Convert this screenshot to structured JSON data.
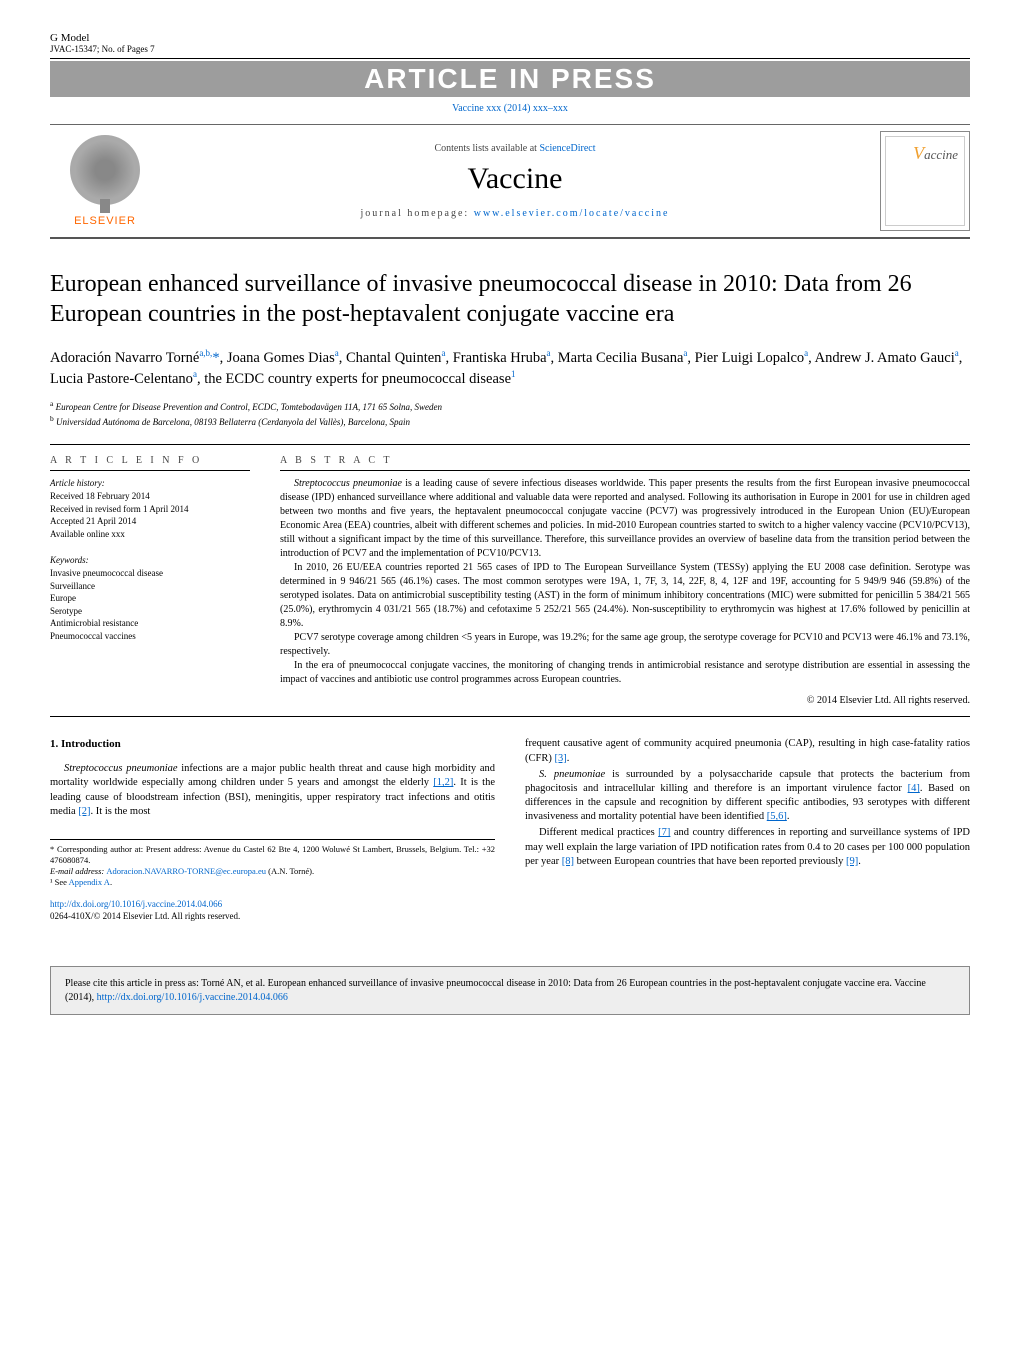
{
  "header": {
    "gmodel": "G Model",
    "gmodel_ref": "JVAC-15347;   No. of Pages 7",
    "aip": "ARTICLE IN PRESS",
    "journal_ref_text": "Vaccine xxx (2014) xxx–xxx",
    "contents_text": "Contents lists available at ",
    "contents_link": "ScienceDirect",
    "journal_title": "Vaccine",
    "homepage_label": "journal homepage: ",
    "homepage_url": "www.elsevier.com/locate/vaccine",
    "elsevier": "ELSEVIER",
    "cover_text": "accine"
  },
  "title": "European enhanced surveillance of invasive pneumococcal disease in 2010: Data from 26 European countries in the post-heptavalent conjugate vaccine era",
  "authors_html": "Adoración Navarro Torné<sup>a,b,</sup><span class='corr'>*</span>, Joana Gomes Dias<sup>a</sup>, Chantal Quinten<sup>a</sup>, Frantiska Hruba<sup>a</sup>, Marta Cecilia Busana<sup>a</sup>, Pier Luigi Lopalco<sup>a</sup>, Andrew J. Amato Gauci<sup>a</sup>, Lucia Pastore-Celentano<sup>a</sup>, the ECDC country experts for pneumococcal disease<sup>1</sup>",
  "affiliations": {
    "a": "European Centre for Disease Prevention and Control, ECDC, Tomtebodavägen 11A, 171 65 Solna, Sweden",
    "b": "Universidad Autónoma de Barcelona, 08193 Bellaterra (Cerdanyola del Vallès), Barcelona, Spain"
  },
  "article_info": {
    "label": "A R T I C L E   I N F O",
    "history_label": "Article history:",
    "received": "Received 18 February 2014",
    "revised": "Received in revised form 1 April 2014",
    "accepted": "Accepted 21 April 2014",
    "online": "Available online xxx",
    "keywords_label": "Keywords:",
    "keywords": [
      "Invasive pneumococcal disease",
      "Surveillance",
      "Europe",
      "Serotype",
      "Antimicrobial resistance",
      "Pneumococcal vaccines"
    ]
  },
  "abstract": {
    "label": "A B S T R A C T",
    "p1": "Streptococcus pneumoniae is a leading cause of severe infectious diseases worldwide. This paper presents the results from the first European invasive pneumococcal disease (IPD) enhanced surveillance where additional and valuable data were reported and analysed. Following its authorisation in Europe in 2001 for use in children aged between two months and five years, the heptavalent pneumococcal conjugate vaccine (PCV7) was progressively introduced in the European Union (EU)/European Economic Area (EEA) countries, albeit with different schemes and policies. In mid-2010 European countries started to switch to a higher valency vaccine (PCV10/PCV13), still without a significant impact by the time of this surveillance. Therefore, this surveillance provides an overview of baseline data from the transition period between the introduction of PCV7 and the implementation of PCV10/PCV13.",
    "p2": "In 2010, 26 EU/EEA countries reported 21 565 cases of IPD to The European Surveillance System (TESSy) applying the EU 2008 case definition. Serotype was determined in 9 946/21 565 (46.1%) cases. The most common serotypes were 19A, 1, 7F, 3, 14, 22F, 8, 4, 12F and 19F, accounting for 5 949/9 946 (59.8%) of the serotyped isolates. Data on antimicrobial susceptibility testing (AST) in the form of minimum inhibitory concentrations (MIC) were submitted for penicillin 5 384/21 565 (25.0%), erythromycin 4 031/21 565 (18.7%) and cefotaxime 5 252/21 565 (24.4%). Non-susceptibility to erythromycin was highest at 17.6% followed by penicillin at 8.9%.",
    "p3": "PCV7 serotype coverage among children <5 years in Europe, was 19.2%; for the same age group, the serotype coverage for PCV10 and PCV13 were 46.1% and 73.1%, respectively.",
    "p4": "In the era of pneumococcal conjugate vaccines, the monitoring of changing trends in antimicrobial resistance and serotype distribution are essential in assessing the impact of vaccines and antibiotic use control programmes across European countries.",
    "copyright": "© 2014 Elsevier Ltd. All rights reserved."
  },
  "body": {
    "intro_heading": "1.  Introduction",
    "left_p1_a": "Streptococcus pneumoniae",
    "left_p1_b": " infections are a major public health threat and cause high morbidity and mortality worldwide especially among children under 5 years and amongst the elderly ",
    "left_p1_ref1": "[1,2]",
    "left_p1_c": ". It is the leading cause of bloodstream infection (BSI), meningitis, upper respiratory tract infections and otitis media ",
    "left_p1_ref2": "[2]",
    "left_p1_d": ". It is the most",
    "right_p1_a": "frequent causative agent of community acquired pneumonia (CAP), resulting in high case-fatality ratios (CFR) ",
    "right_p1_ref": "[3]",
    "right_p1_b": ".",
    "right_p2_a": "S. pneumoniae",
    "right_p2_b": " is surrounded by a polysaccharide capsule that protects the bacterium from phagocitosis and intracellular killing and therefore is an important virulence factor ",
    "right_p2_ref1": "[4]",
    "right_p2_c": ". Based on differences in the capsule and recognition by different specific antibodies, 93 serotypes with different invasiveness and mortality potential have been identified ",
    "right_p2_ref2": "[5,6]",
    "right_p2_d": ".",
    "right_p3_a": "Different medical practices ",
    "right_p3_ref1": "[7]",
    "right_p3_b": " and country differences in reporting and surveillance systems of IPD may well explain the large variation of IPD notification rates from 0.4 to 20 cases per 100 000 population per year ",
    "right_p3_ref2": "[8]",
    "right_p3_c": " between European countries that have been reported previously ",
    "right_p3_ref3": "[9]",
    "right_p3_d": "."
  },
  "footnotes": {
    "corr": "* Corresponding author at: Present address: Avenue du Castel 62 Bte 4, 1200 Woluwé St Lambert, Brussels, Belgium. Tel.: +32 476080874.",
    "email_label": "E-mail address: ",
    "email": "Adoracion.NAVARRO-TORNE@ec.europa.eu",
    "email_suffix": " (A.N. Torné).",
    "note1_a": "¹ See ",
    "note1_link": "Appendix A",
    "note1_b": ".",
    "doi": "http://dx.doi.org/10.1016/j.vaccine.2014.04.066",
    "issn": "0264-410X/© 2014 Elsevier Ltd. All rights reserved."
  },
  "citebox": {
    "text_a": "Please cite this article in press as: Torné AN, et al. European enhanced surveillance of invasive pneumococcal disease in 2010: Data from 26 European countries in the post-heptavalent conjugate vaccine era. Vaccine (2014), ",
    "link": "http://dx.doi.org/10.1016/j.vaccine.2014.04.066"
  },
  "colors": {
    "link": "#0066cc",
    "banner_bg": "#9d9d9d",
    "banner_text": "#ffffff",
    "elsevier": "#ff6600",
    "citebox_bg": "#eeeeee"
  }
}
